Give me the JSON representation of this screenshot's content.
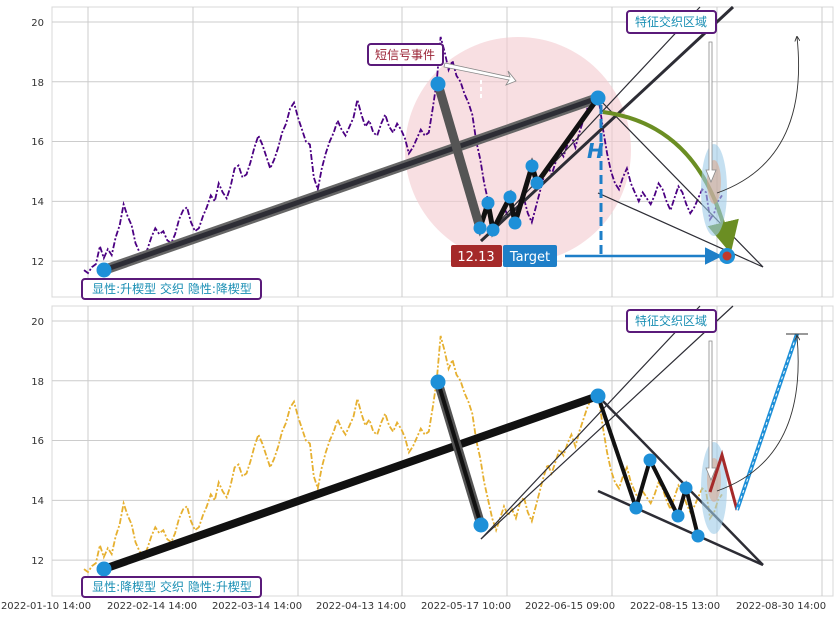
{
  "colors": {
    "top_series": "#4b0082",
    "bottom_series": "#e6b030",
    "marker": "#1e90d8",
    "pattern_line": "#2d2d35",
    "callout_border": "#5a1a7a",
    "callout_text_teal": "#1a8fb4",
    "callout_text_red": "#9b2335",
    "value_box": "#a52a2a",
    "target_box": "#1e7fc8",
    "circle_fill": "#f3c9cf",
    "arrow_green": "#6b8e23"
  },
  "chart_data": [
    {
      "type": "line",
      "panel": "top",
      "ylim": [
        10.8,
        20.5
      ],
      "yticks": [
        "12",
        "14",
        "16",
        "18",
        "20"
      ],
      "grid": true,
      "series": [
        {
          "values": [
            11.7,
            11.6,
            11.8,
            11.9,
            12.5,
            12.1,
            12.4,
            12.2,
            12.8,
            13.2,
            13.9,
            13.5,
            13.2,
            12.6,
            12.3,
            12.1,
            12.4,
            12.8,
            13.1,
            12.9,
            13.0,
            12.7,
            12.6,
            12.9,
            13.4,
            13.7,
            13.8,
            13.3,
            13.0,
            13.1,
            13.5,
            13.8,
            14.2,
            14.0,
            14.6,
            14.3,
            14.1,
            14.5,
            15.1,
            15.2,
            14.8,
            14.9,
            15.3,
            15.8,
            16.2,
            15.9,
            15.5,
            15.1,
            15.4,
            15.8,
            16.3,
            16.6,
            17.1,
            17.3,
            16.8,
            16.4,
            16.0,
            15.9,
            14.8,
            14.4,
            15.1,
            15.6,
            16.0,
            16.3,
            16.7,
            16.4,
            16.2,
            16.5,
            16.8,
            17.4,
            16.9,
            16.5,
            16.7,
            16.3,
            16.2,
            16.6,
            16.9,
            16.5,
            16.3,
            16.6,
            16.4,
            16.1,
            15.6,
            15.8,
            16.1,
            16.4,
            16.2,
            16.3,
            17.1,
            18.0,
            19.5,
            19.0,
            18.4,
            18.7,
            18.2,
            18.0,
            17.6,
            17.3,
            16.9,
            16.0,
            15.4,
            14.6,
            14.0,
            13.4,
            13.0,
            13.4,
            13.8,
            13.5,
            13.7,
            13.4,
            13.9,
            14.1,
            13.6,
            13.3,
            13.8,
            14.3,
            14.8,
            15.2,
            14.9,
            15.3,
            15.7,
            15.5,
            15.9,
            16.2,
            15.8,
            16.3,
            16.7,
            17.1,
            17.4,
            17.6,
            17.3,
            16.4,
            15.6,
            15.0,
            14.6,
            14.4,
            14.8,
            15.1,
            14.6,
            14.3,
            14.0,
            14.3,
            14.1,
            13.9,
            14.2,
            14.6,
            14.4,
            14.0,
            13.7,
            14.1,
            14.5,
            14.3,
            13.9,
            13.6,
            13.8,
            14.1,
            14.4,
            14.3,
            13.4,
            13.6,
            14.0,
            14.2
          ]
        }
      ]
    },
    {
      "type": "line",
      "panel": "bottom",
      "ylim": [
        10.8,
        20.5
      ],
      "yticks": [
        "12",
        "14",
        "16",
        "18",
        "20"
      ],
      "xticks": [
        "2022-01-10 14:00",
        "2022-02-14 14:00",
        "2022-03-14 14:00",
        "2022-04-13 14:00",
        "2022-05-17 10:00",
        "2022-06-15 09:00",
        "2022-08-15 13:00",
        "2022-08-30 14:00"
      ],
      "grid": true,
      "series": [
        {
          "values": [
            11.7,
            11.6,
            11.8,
            11.9,
            12.5,
            12.1,
            12.4,
            12.2,
            12.8,
            13.2,
            13.9,
            13.5,
            13.2,
            12.6,
            12.3,
            12.1,
            12.4,
            12.8,
            13.1,
            12.9,
            13.0,
            12.7,
            12.6,
            12.9,
            13.4,
            13.7,
            13.8,
            13.3,
            13.0,
            13.1,
            13.5,
            13.8,
            14.2,
            14.0,
            14.6,
            14.3,
            14.1,
            14.5,
            15.1,
            15.2,
            14.8,
            14.9,
            15.3,
            15.8,
            16.2,
            15.9,
            15.5,
            15.1,
            15.4,
            15.8,
            16.3,
            16.6,
            17.1,
            17.3,
            16.8,
            16.4,
            16.0,
            15.9,
            14.8,
            14.4,
            15.1,
            15.6,
            16.0,
            16.3,
            16.7,
            16.4,
            16.2,
            16.5,
            16.8,
            17.4,
            16.9,
            16.5,
            16.7,
            16.3,
            16.2,
            16.6,
            16.9,
            16.5,
            16.3,
            16.6,
            16.4,
            16.1,
            15.6,
            15.8,
            16.1,
            16.4,
            16.2,
            16.3,
            17.1,
            18.0,
            19.5,
            19.0,
            18.4,
            18.7,
            18.2,
            18.0,
            17.6,
            17.3,
            16.9,
            16.0,
            15.4,
            14.6,
            14.0,
            13.4,
            13.0,
            13.4,
            13.8,
            13.5,
            13.7,
            13.4,
            13.9,
            14.1,
            13.6,
            13.3,
            13.8,
            14.3,
            14.8,
            15.2,
            14.9,
            15.3,
            15.7,
            15.5,
            15.9,
            16.2,
            15.8,
            16.3,
            16.7,
            17.1,
            17.4,
            17.6,
            17.3,
            16.4,
            15.6,
            15.0,
            14.6,
            14.4,
            14.8,
            15.1,
            14.6,
            14.3,
            14.0,
            14.3,
            14.1,
            13.9,
            14.2,
            14.6,
            14.4,
            14.0,
            13.7,
            14.1,
            14.5,
            14.3,
            13.9,
            13.6,
            13.8,
            14.1,
            14.4,
            14.3,
            13.4,
            13.6,
            14.0,
            14.2
          ]
        }
      ]
    }
  ],
  "annotations": {
    "top_label": "显性:升楔型 交织 隐性:降楔型",
    "bottom_label": "显性:降楔型 交织 隐性:升楔型",
    "zone_label_top": "特征交织区域",
    "zone_label_bottom": "特征交织区域",
    "event_label": "短信号事件",
    "value_box": "12.13",
    "target_box": "Target",
    "h_marker": "H"
  }
}
